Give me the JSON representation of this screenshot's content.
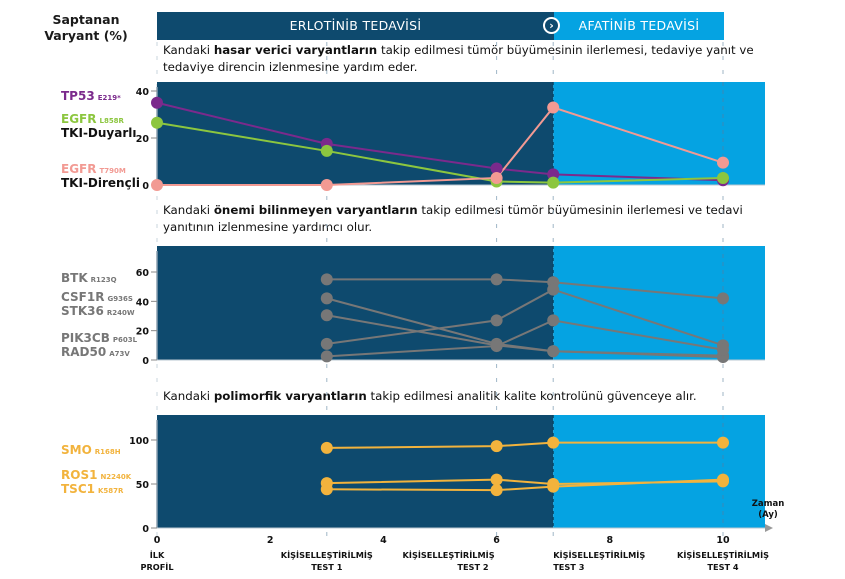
{
  "header": {
    "ylabel_line1": "Saptanan",
    "ylabel_line2": "Varyant (%)",
    "phase1_label": "ERLOTİNİB TEDAVİSİ",
    "phase2_label": "AFATİNİB TEDAVİSİ",
    "phase_switch_icon": "chevron-right-circle",
    "colors": {
      "erlotinib": "#0e4a6e",
      "afatinib": "#05a3e2"
    }
  },
  "captions": {
    "panel1": {
      "pre": "Kandaki ",
      "bold": "hasar verici varyantların",
      "post": " takip edilmesi tümör büyümesinin ilerlemesi, tedaviye yanıt ve",
      "line2": "tedaviye direncin izlenmesine yardım eder."
    },
    "panel2": {
      "pre": "Kandaki ",
      "bold": "önemi bilinmeyen varyantların",
      "post": " takip edilmesi tümör büyümesinin ilerlemesi ve tedavi",
      "line2": "yanıtının izlenmesine yardımcı olur."
    },
    "panel3": {
      "pre": "Kandaki ",
      "bold": "polimorfik varyantların",
      "post": " takip edilmesi analitik kalite kontrolünü güvenceye alır."
    }
  },
  "legend": {
    "panel1": [
      {
        "gene": "TP53",
        "mutation": "E219*",
        "color": "#7b2a8c"
      },
      {
        "gene": "EGFR",
        "mutation": "L858R",
        "color": "#8cc63f",
        "note": "TKI-Duyarlı"
      },
      {
        "gene": "EGFR",
        "mutation": "T790M",
        "color": "#f29a93",
        "note": "TKI-Dirençli"
      }
    ],
    "panel2": [
      {
        "gene": "BTK",
        "mutation": "R123Q"
      },
      {
        "gene": "CSF1R",
        "mutation": "G936S"
      },
      {
        "gene": "STK36",
        "mutation": "R240W"
      },
      {
        "gene": "PIK3CB",
        "mutation": "P603L"
      },
      {
        "gene": "RAD50",
        "mutation": "A73V"
      }
    ],
    "panel3": [
      {
        "gene": "SMO",
        "mutation": "R168H"
      },
      {
        "gene": "ROS1",
        "mutation": "N2240K"
      },
      {
        "gene": "TSC1",
        "mutation": "K587R"
      }
    ],
    "gray": "#777777",
    "gold": "#f2b33d"
  },
  "chart_data": [
    {
      "type": "line",
      "title": "Hasar verici varyantlar",
      "xlabel": "Zaman (Ay)",
      "ylabel": "Saptanan Varyant (%)",
      "xlim": [
        0,
        11
      ],
      "ylim": [
        0,
        45
      ],
      "yticks": [
        0,
        20,
        40
      ],
      "phase_boundary_x": 7,
      "series": [
        {
          "name": "TP53 E219*",
          "color": "#7b2a8c",
          "x": [
            0,
            3,
            6,
            7,
            10
          ],
          "y": [
            35,
            17.5,
            7,
            4.5,
            2
          ]
        },
        {
          "name": "EGFR L858R (TKI-Duyarlı)",
          "color": "#8cc63f",
          "x": [
            0,
            3,
            6,
            7,
            10
          ],
          "y": [
            26.5,
            14.5,
            1.5,
            1,
            3
          ]
        },
        {
          "name": "EGFR T790M (TKI-Dirençli)",
          "color": "#f29a93",
          "x": [
            0,
            3,
            6,
            7,
            10
          ],
          "y": [
            0,
            0,
            3,
            33,
            9.5
          ]
        }
      ]
    },
    {
      "type": "line",
      "title": "Önemi bilinmeyen varyantlar",
      "xlabel": "Zaman (Ay)",
      "ylabel": "Saptanan Varyant (%)",
      "xlim": [
        0,
        11
      ],
      "ylim": [
        0,
        75
      ],
      "yticks": [
        0,
        20,
        40,
        60
      ],
      "phase_boundary_x": 7,
      "series": [
        {
          "name": "BTK R123Q",
          "color": "#777777",
          "x": [
            3,
            6,
            7,
            10
          ],
          "y": [
            55,
            55,
            53,
            42
          ]
        },
        {
          "name": "CSF1R G936S",
          "color": "#777777",
          "x": [
            3,
            6,
            7,
            10
          ],
          "y": [
            42,
            11,
            6,
            3
          ]
        },
        {
          "name": "STK36 R240W",
          "color": "#777777",
          "x": [
            3,
            6,
            7,
            10
          ],
          "y": [
            30.5,
            10,
            6,
            2
          ]
        },
        {
          "name": "PIK3CB P603L",
          "color": "#777777",
          "x": [
            3,
            6,
            7,
            10
          ],
          "y": [
            11,
            27,
            48,
            10
          ]
        },
        {
          "name": "RAD50 A73V",
          "color": "#777777",
          "x": [
            3,
            6,
            7,
            10
          ],
          "y": [
            2.5,
            9.5,
            27,
            7
          ]
        }
      ]
    },
    {
      "type": "line",
      "title": "Polimorfik varyantlar",
      "xlabel": "Zaman (Ay)",
      "ylabel": "Saptanan Varyant (%)",
      "xlim": [
        0,
        11
      ],
      "ylim": [
        0,
        130
      ],
      "yticks": [
        0,
        50,
        100
      ],
      "phase_boundary_x": 7,
      "series": [
        {
          "name": "SMO R168H",
          "color": "#f2b33d",
          "x": [
            3,
            6,
            7,
            10
          ],
          "y": [
            91,
            93,
            97,
            97
          ]
        },
        {
          "name": "ROS1 N2240K",
          "color": "#f2b33d",
          "x": [
            3,
            6,
            7,
            10
          ],
          "y": [
            51,
            55,
            50,
            53
          ]
        },
        {
          "name": "TSC1 K587R",
          "color": "#f2b33d",
          "x": [
            3,
            6,
            7,
            10
          ],
          "y": [
            44,
            43,
            47,
            55
          ]
        }
      ]
    }
  ],
  "xaxis": {
    "ticks": [
      0,
      2,
      4,
      6,
      8,
      10
    ],
    "label_line1": "Zaman",
    "label_line2": "(Ay)",
    "timepoints": [
      {
        "x": 0,
        "line1": "İLK",
        "line2": "PROFİL"
      },
      {
        "x": 3,
        "line1": "KİŞİSELLEŞTİRİLMİŞ",
        "line2": "TEST 1"
      },
      {
        "x": 6,
        "line1": "KİŞİSELLEŞTİRİLMİŞ",
        "line2": "TEST 2"
      },
      {
        "x": 7,
        "line1": "KİŞİSELLEŞTİRİLMİŞ",
        "line2": "TEST 3"
      },
      {
        "x": 10,
        "line1": "KİŞİSELLEŞTİRİLMİŞ",
        "line2": "TEST 4"
      }
    ]
  }
}
